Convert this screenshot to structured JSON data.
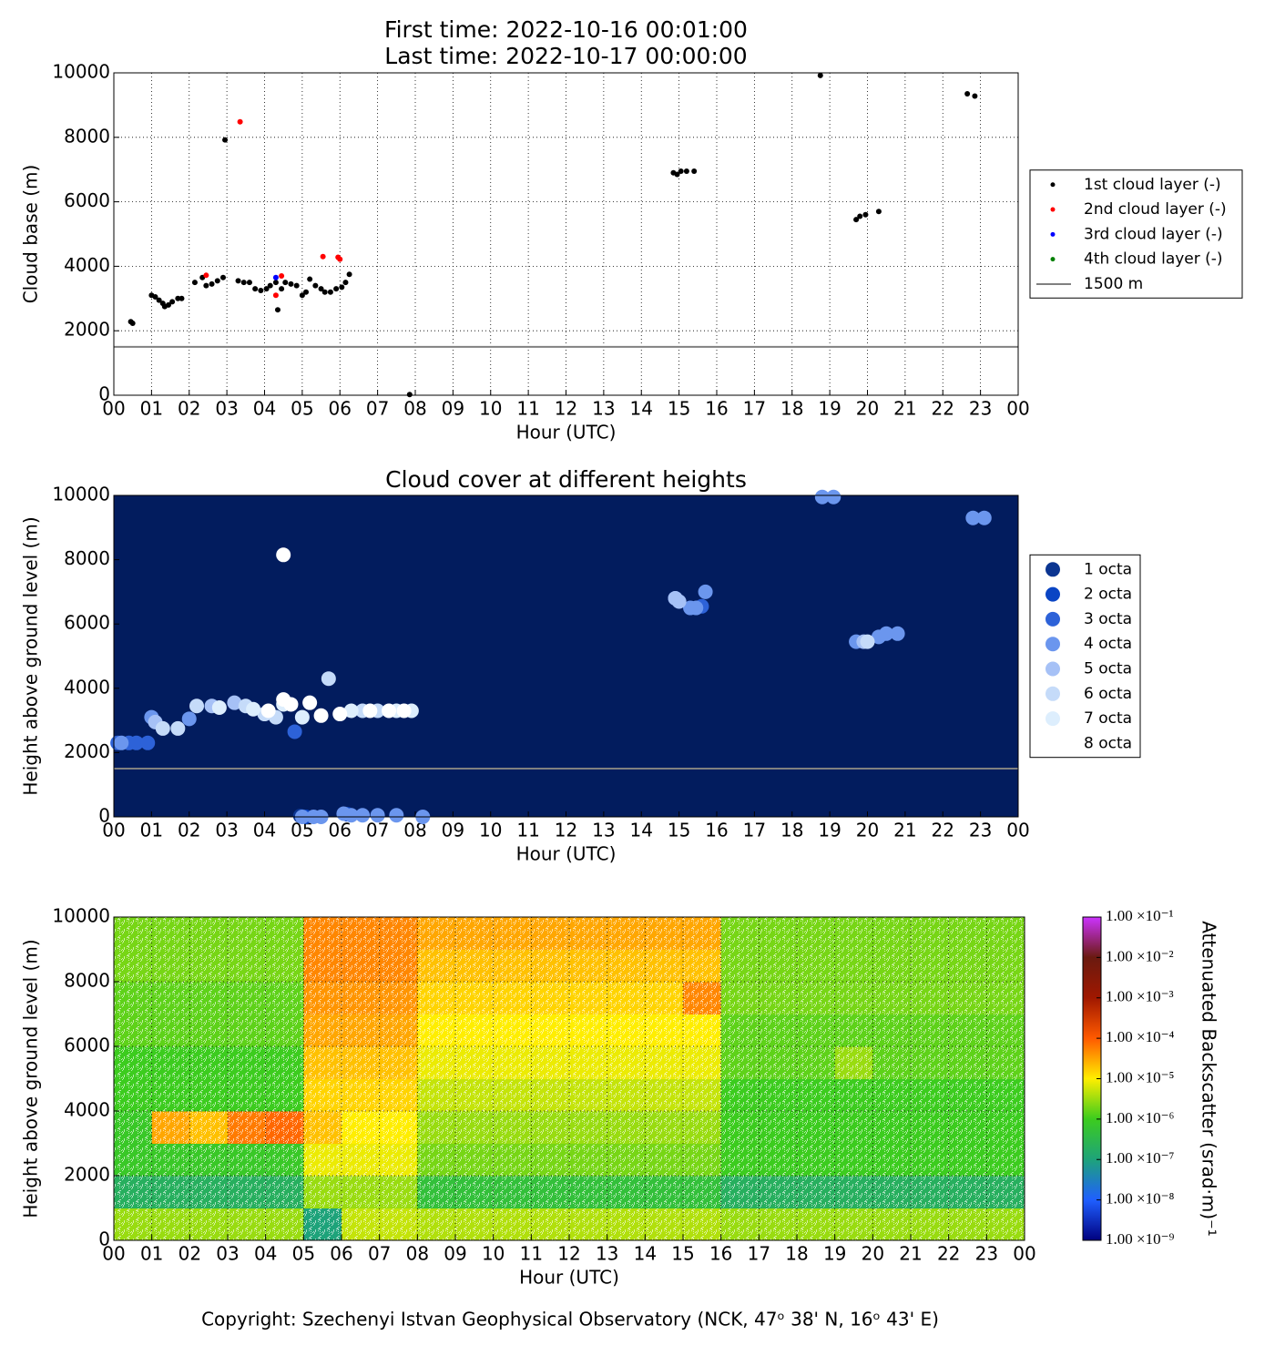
{
  "footer": "Copyright: Szechenyi Istvan Geophysical Observatory (NCK, 47ᵒ 38' N, 16ᵒ 43' E)",
  "chart_data": [
    {
      "type": "scatter",
      "title": "First time: 2022-10-16 00:01:00",
      "subtitle": "Last time: 2022-10-17 00:00:00",
      "x_label": "Hour (UTC)",
      "y_label": "Cloud base (m)",
      "grid": true,
      "legend": "right",
      "xlim": [
        0,
        24
      ],
      "ylim": [
        0,
        10000
      ],
      "yticks": [
        0,
        2000,
        4000,
        6000,
        8000,
        10000
      ],
      "xticks": [
        {
          "value": 0,
          "label": "00"
        },
        {
          "value": 1,
          "label": "01"
        },
        {
          "value": 2,
          "label": "02"
        },
        {
          "value": 3,
          "label": "03"
        },
        {
          "value": 4,
          "label": "04"
        },
        {
          "value": 5,
          "label": "05"
        },
        {
          "value": 6,
          "label": "06"
        },
        {
          "value": 7,
          "label": "07"
        },
        {
          "value": 8,
          "label": "08"
        },
        {
          "value": 9,
          "label": "09"
        },
        {
          "value": 10,
          "label": "10"
        },
        {
          "value": 11,
          "label": "11"
        },
        {
          "value": 12,
          "label": "12"
        },
        {
          "value": 13,
          "label": "13"
        },
        {
          "value": 14,
          "label": "14"
        },
        {
          "value": 15,
          "label": "15"
        },
        {
          "value": 16,
          "label": "16"
        },
        {
          "value": 17,
          "label": "17"
        },
        {
          "value": 18,
          "label": "18"
        },
        {
          "value": 19,
          "label": "19"
        },
        {
          "value": 20,
          "label": "20"
        },
        {
          "value": 21,
          "label": "21"
        },
        {
          "value": 22,
          "label": "22"
        },
        {
          "value": 23,
          "label": "23"
        },
        {
          "value": 24,
          "label": "00"
        }
      ],
      "hline": {
        "value": 1500,
        "label": "1500 m",
        "color": "#808080"
      },
      "series": [
        {
          "name": "1st cloud layer (-)",
          "color": "#000000",
          "x": [
            0.45,
            0.5,
            1.0,
            1.1,
            1.2,
            1.3,
            1.35,
            1.45,
            1.55,
            1.7,
            1.8,
            2.15,
            2.35,
            2.45,
            2.6,
            2.75,
            2.9,
            2.95,
            3.3,
            3.45,
            3.6,
            3.75,
            3.9,
            4.05,
            4.15,
            4.3,
            4.35,
            4.45,
            4.55,
            4.7,
            4.85,
            5.0,
            5.1,
            5.2,
            5.35,
            5.5,
            5.6,
            5.75,
            5.9,
            6.05,
            6.15,
            6.25,
            7.85,
            14.85,
            14.95,
            15.05,
            15.2,
            15.4,
            18.75,
            19.7,
            19.8,
            19.95,
            20.3,
            22.65,
            22.85
          ],
          "values": [
            2280,
            2230,
            3100,
            3050,
            2950,
            2850,
            2750,
            2800,
            2900,
            3000,
            3000,
            3500,
            3650,
            3400,
            3450,
            3550,
            3650,
            7920,
            3550,
            3500,
            3500,
            3300,
            3250,
            3300,
            3400,
            3500,
            2650,
            3300,
            3500,
            3450,
            3400,
            3100,
            3200,
            3600,
            3400,
            3300,
            3200,
            3200,
            3300,
            3350,
            3500,
            3750,
            20,
            6900,
            6850,
            6950,
            6950,
            6950,
            9920,
            5450,
            5550,
            5600,
            5700,
            9350,
            9280
          ]
        },
        {
          "name": "2nd cloud layer (-)",
          "color": "#ff0000",
          "x": [
            3.35,
            2.45,
            4.3,
            4.45,
            5.55,
            5.95,
            6.0
          ],
          "values": [
            8480,
            3720,
            3100,
            3700,
            4300,
            4280,
            4220
          ]
        },
        {
          "name": "3rd cloud layer (-)",
          "color": "#0000ff",
          "x": [
            4.3
          ],
          "values": [
            3650
          ]
        },
        {
          "name": "4th cloud layer (-)",
          "color": "#008000",
          "x": [],
          "values": []
        }
      ]
    },
    {
      "type": "scatter",
      "title": "Cloud cover at different heights",
      "x_label": "Hour (UTC)",
      "y_label": "Height above ground level (m)",
      "grid": false,
      "legend": "right",
      "background": "#021c5e",
      "xlim": [
        0,
        24
      ],
      "ylim": [
        0,
        10000
      ],
      "yticks": [
        0,
        2000,
        4000,
        6000,
        8000,
        10000
      ],
      "xticks": [
        {
          "value": 0,
          "label": "00"
        },
        {
          "value": 1,
          "label": "01"
        },
        {
          "value": 2,
          "label": "02"
        },
        {
          "value": 3,
          "label": "03"
        },
        {
          "value": 4,
          "label": "04"
        },
        {
          "value": 5,
          "label": "05"
        },
        {
          "value": 6,
          "label": "06"
        },
        {
          "value": 7,
          "label": "07"
        },
        {
          "value": 8,
          "label": "08"
        },
        {
          "value": 9,
          "label": "09"
        },
        {
          "value": 10,
          "label": "10"
        },
        {
          "value": 11,
          "label": "11"
        },
        {
          "value": 12,
          "label": "12"
        },
        {
          "value": 13,
          "label": "13"
        },
        {
          "value": 14,
          "label": "14"
        },
        {
          "value": 15,
          "label": "15"
        },
        {
          "value": 16,
          "label": "16"
        },
        {
          "value": 17,
          "label": "17"
        },
        {
          "value": 18,
          "label": "18"
        },
        {
          "value": 19,
          "label": "19"
        },
        {
          "value": 20,
          "label": "20"
        },
        {
          "value": 21,
          "label": "21"
        },
        {
          "value": 22,
          "label": "22"
        },
        {
          "value": 23,
          "label": "23"
        },
        {
          "value": 24,
          "label": "00"
        }
      ],
      "hline": {
        "value": 1500,
        "color": "#808080"
      },
      "series": [
        {
          "name": "1 octa",
          "color": "#0b3591",
          "x": [
            4.95
          ],
          "values": [
            30
          ]
        },
        {
          "name": "2 octa",
          "color": "#0a45c4",
          "x": [
            5.1,
            6.2
          ],
          "values": [
            0,
            80
          ]
        },
        {
          "name": "3 octa",
          "color": "#2d62d8",
          "x": [
            0.1,
            0.4,
            0.6,
            0.9,
            4.8,
            15.6
          ],
          "values": [
            2300,
            2300,
            2300,
            2300,
            2650,
            6550
          ]
        },
        {
          "name": "4 octa",
          "color": "#6b96ee",
          "x": [
            0.2,
            1.0,
            2.0,
            5.0,
            5.3,
            5.5,
            6.1,
            6.3,
            6.6,
            7.0,
            7.5,
            8.2,
            14.9,
            15.3,
            15.45,
            15.7,
            19.7,
            20.3,
            20.5,
            20.8,
            18.8,
            19.1,
            22.8,
            23.1
          ],
          "values": [
            2300,
            3100,
            3050,
            0,
            0,
            0,
            100,
            50,
            50,
            50,
            50,
            0,
            6800,
            6500,
            6500,
            7000,
            5450,
            5600,
            5700,
            5700,
            9950,
            9950,
            9300,
            9300
          ]
        },
        {
          "name": "5 octa",
          "color": "#a6c1f6",
          "x": [
            1.1,
            2.6,
            3.2,
            14.9,
            15.0,
            19.9
          ],
          "values": [
            2950,
            3450,
            3550,
            6800,
            6700,
            5450
          ]
        },
        {
          "name": "6 octa",
          "color": "#c5dbf9",
          "x": [
            1.3,
            1.7,
            2.2,
            3.5,
            4.0,
            4.3,
            5.7,
            6.6,
            7.0,
            20.0
          ],
          "values": [
            2750,
            2750,
            3450,
            3450,
            3200,
            3100,
            4300,
            3300,
            3300,
            5450
          ]
        },
        {
          "name": "7 octa",
          "color": "#ddeefd",
          "x": [
            2.8,
            3.7,
            4.5,
            5.0,
            6.3,
            7.5,
            7.9
          ],
          "values": [
            3400,
            3350,
            3500,
            3100,
            3300,
            3300,
            3300
          ]
        },
        {
          "name": "8 octa",
          "color": "#ffffff",
          "x": [
            4.5,
            4.1,
            4.5,
            4.7,
            5.2,
            5.5,
            6.0,
            6.8,
            7.3,
            7.7
          ],
          "values": [
            8150,
            3300,
            3650,
            3500,
            3550,
            3150,
            3200,
            3300,
            3300,
            3300
          ]
        }
      ]
    },
    {
      "type": "heatmap",
      "x_label": "Hour (UTC)",
      "y_label": "Height above ground level (m)",
      "grid": true,
      "xlim": [
        0,
        24
      ],
      "ylim": [
        0,
        10000
      ],
      "yticks": [
        0,
        2000,
        4000,
        6000,
        8000,
        10000
      ],
      "xticks": [
        {
          "value": 0,
          "label": "00"
        },
        {
          "value": 1,
          "label": "01"
        },
        {
          "value": 2,
          "label": "02"
        },
        {
          "value": 3,
          "label": "03"
        },
        {
          "value": 4,
          "label": "04"
        },
        {
          "value": 5,
          "label": "05"
        },
        {
          "value": 6,
          "label": "06"
        },
        {
          "value": 7,
          "label": "07"
        },
        {
          "value": 8,
          "label": "08"
        },
        {
          "value": 9,
          "label": "09"
        },
        {
          "value": 10,
          "label": "10"
        },
        {
          "value": 11,
          "label": "11"
        },
        {
          "value": 12,
          "label": "12"
        },
        {
          "value": 13,
          "label": "13"
        },
        {
          "value": 14,
          "label": "14"
        },
        {
          "value": 15,
          "label": "15"
        },
        {
          "value": 16,
          "label": "16"
        },
        {
          "value": 17,
          "label": "17"
        },
        {
          "value": 18,
          "label": "18"
        },
        {
          "value": 19,
          "label": "19"
        },
        {
          "value": 20,
          "label": "20"
        },
        {
          "value": 21,
          "label": "21"
        },
        {
          "value": 22,
          "label": "22"
        },
        {
          "value": 23,
          "label": "23"
        },
        {
          "value": 24,
          "label": "00"
        }
      ],
      "x_edges": [
        0,
        1,
        2,
        3,
        4,
        5,
        6,
        7,
        8,
        9,
        10,
        11,
        12,
        13,
        14,
        15,
        16,
        17,
        18,
        19,
        20,
        21,
        22,
        23,
        24
      ],
      "y_edges": [
        0,
        1000,
        2000,
        3000,
        4000,
        5000,
        6000,
        7000,
        8000,
        9000,
        10000
      ],
      "z": [
        [
          3e-06,
          3e-06,
          3e-06,
          3e-06,
          3e-06,
          1e-07,
          5e-06,
          5e-06,
          4e-06,
          4e-06,
          4e-06,
          4e-06,
          4e-06,
          4e-06,
          4e-06,
          4e-06,
          3e-06,
          3e-06,
          3e-06,
          3e-06,
          3e-06,
          3e-06,
          3e-06,
          3e-06
        ],
        [
          2e-07,
          2e-07,
          2e-07,
          2e-07,
          2e-07,
          3e-06,
          3e-06,
          3e-06,
          5e-07,
          5e-07,
          5e-07,
          5e-07,
          5e-07,
          5e-07,
          5e-07,
          5e-07,
          2e-07,
          2e-07,
          2e-07,
          2e-07,
          2e-07,
          2e-07,
          2e-07,
          2e-07
        ],
        [
          8e-07,
          8e-07,
          8e-07,
          8e-07,
          8e-07,
          8e-06,
          8e-06,
          8e-06,
          2e-06,
          2e-06,
          2e-06,
          2e-06,
          2e-06,
          2e-06,
          2e-06,
          2e-06,
          1e-06,
          1e-06,
          1e-06,
          1e-06,
          1e-06,
          1e-06,
          1e-06,
          1e-06
        ],
        [
          8e-07,
          3e-05,
          2e-05,
          6e-05,
          8e-05,
          2e-05,
          1e-05,
          1e-05,
          3e-06,
          3e-06,
          3e-06,
          3e-06,
          3e-06,
          3e-06,
          3e-06,
          3e-06,
          1e-06,
          1e-06,
          1e-06,
          1e-06,
          1e-06,
          1e-06,
          1e-06,
          1e-06
        ],
        [
          1e-06,
          1e-06,
          1e-06,
          1e-06,
          1e-06,
          1.5e-05,
          1.5e-05,
          1.5e-05,
          5e-06,
          5e-06,
          5e-06,
          5e-06,
          5e-06,
          5e-06,
          5e-06,
          5e-06,
          1e-06,
          1e-06,
          1e-06,
          1e-06,
          1e-06,
          1e-06,
          1e-06,
          1e-06
        ],
        [
          1e-06,
          1e-06,
          1e-06,
          1e-06,
          1e-06,
          2e-05,
          2e-05,
          2e-05,
          8e-06,
          8e-06,
          8e-06,
          8e-06,
          8e-06,
          8e-06,
          8e-06,
          8e-06,
          1.5e-06,
          1.5e-06,
          1.5e-06,
          3e-06,
          1.5e-06,
          1.5e-06,
          1.5e-06,
          1.5e-06
        ],
        [
          1.5e-06,
          1.5e-06,
          1.5e-06,
          1.5e-06,
          1.5e-06,
          3e-05,
          3e-05,
          3e-05,
          1e-05,
          1e-05,
          1e-05,
          1e-05,
          1e-05,
          1e-05,
          1e-05,
          1e-05,
          1.5e-06,
          1.5e-06,
          1.5e-06,
          1.5e-06,
          1.5e-06,
          1.5e-06,
          1.5e-06,
          1.5e-06
        ],
        [
          1.5e-06,
          1.5e-06,
          1.5e-06,
          1.5e-06,
          1.5e-06,
          4e-05,
          4e-05,
          4e-05,
          1.5e-05,
          1.5e-05,
          1.5e-05,
          1.5e-05,
          1.5e-05,
          1.5e-05,
          1.5e-05,
          5e-05,
          2e-06,
          2e-06,
          2e-06,
          2e-06,
          2e-06,
          2e-06,
          2e-06,
          2e-06
        ],
        [
          2e-06,
          2e-06,
          2e-06,
          2e-06,
          2e-06,
          5e-05,
          5e-05,
          5e-05,
          2e-05,
          2e-05,
          2e-05,
          2e-05,
          2e-05,
          2e-05,
          2e-05,
          2e-05,
          2e-06,
          2e-06,
          2e-06,
          2e-06,
          2e-06,
          2e-06,
          2e-06,
          2e-06
        ],
        [
          2e-06,
          2e-06,
          2e-06,
          2e-06,
          2e-06,
          5e-05,
          5e-05,
          5e-05,
          3e-05,
          3e-05,
          3e-05,
          3e-05,
          3e-05,
          3e-05,
          3e-05,
          3e-05,
          2e-06,
          2e-06,
          2e-06,
          2e-06,
          2e-06,
          2e-06,
          2e-06,
          2e-06
        ]
      ],
      "colormap": [
        "#00007f",
        "#1f5fff",
        "#1ea37a",
        "#3ccc1e",
        "#ffee00",
        "#ff5a00",
        "#a01800",
        "#6a1a10",
        "#cc33ff"
      ],
      "colorbar": {
        "label": "Attenuated Backscatter (srad·m)⁻¹",
        "log": true,
        "lim": [
          1e-09,
          0.1
        ],
        "ticks": [
          {
            "value": 1e-09,
            "label": "1.00 ×10⁻⁹"
          },
          {
            "value": 1e-08,
            "label": "1.00 ×10⁻⁸"
          },
          {
            "value": 1e-07,
            "label": "1.00 ×10⁻⁷"
          },
          {
            "value": 1e-06,
            "label": "1.00 ×10⁻⁶"
          },
          {
            "value": 1e-05,
            "label": "1.00 ×10⁻⁵"
          },
          {
            "value": 0.0001,
            "label": "1.00 ×10⁻⁴"
          },
          {
            "value": 0.001,
            "label": "1.00 ×10⁻³"
          },
          {
            "value": 0.01,
            "label": "1.00 ×10⁻²"
          },
          {
            "value": 0.1,
            "label": "1.00 ×10⁻¹"
          }
        ]
      }
    }
  ]
}
